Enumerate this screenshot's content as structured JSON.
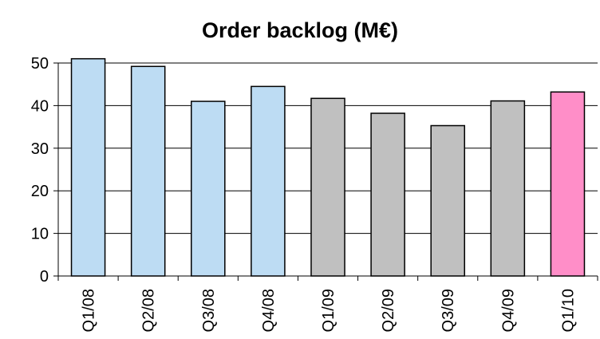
{
  "chart_data": {
    "type": "bar",
    "title": "Order backlog (M€)",
    "categories": [
      "Q1/08",
      "Q2/08",
      "Q3/08",
      "Q4/08",
      "Q1/09",
      "Q2/09",
      "Q3/09",
      "Q4/09",
      "Q1/10"
    ],
    "values": [
      51,
      49.2,
      41,
      44.5,
      41.7,
      38.2,
      35.3,
      41.1,
      43.2
    ],
    "bar_colors": [
      "#bddcf3",
      "#bddcf3",
      "#bddcf3",
      "#bddcf3",
      "#c0c0c0",
      "#c0c0c0",
      "#c0c0c0",
      "#c0c0c0",
      "#ff8ec8"
    ],
    "ylim": [
      0,
      50
    ],
    "yticks": [
      0,
      10,
      20,
      30,
      40,
      50
    ],
    "grid": true,
    "legend": "none"
  }
}
